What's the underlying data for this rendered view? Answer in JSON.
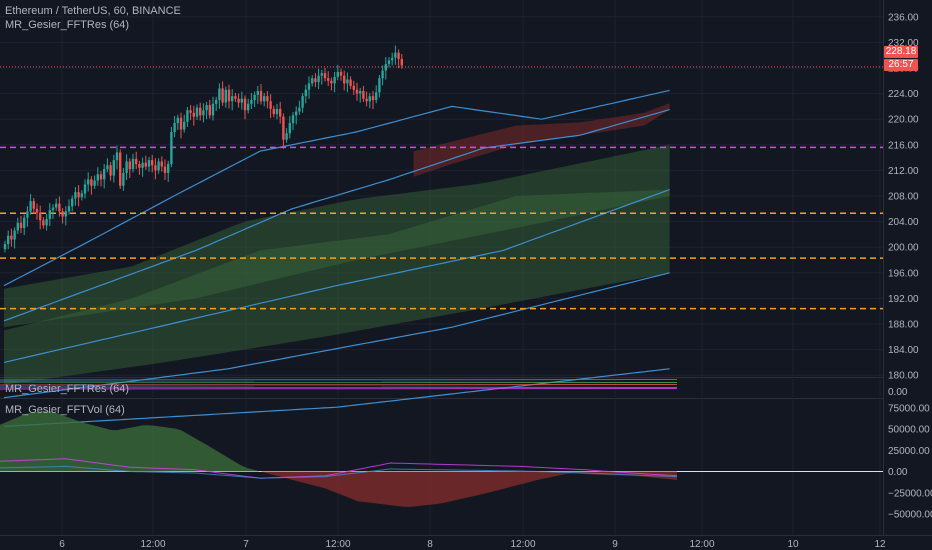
{
  "header": {
    "title": "Ethereum / TetherUS, 60, BINANCE",
    "study_main": "MR_Gesier_FFTRes (64)",
    "study_res": "MR_Gesier_FFTRes (64)",
    "study_vol": "MR_Gesier_FFTVol (64)"
  },
  "price_tags": {
    "last_price": "228.18",
    "countdown": "26:57"
  },
  "colors": {
    "background": "#131722",
    "grid": "#1e2230",
    "up": "#26a69a",
    "down": "#ef5350",
    "band_green": "#3a6b3a",
    "band_red": "#7a2a2a",
    "ma_blue": "#3d8fd1",
    "ma_green": "#4caf50",
    "level_orange": "#f7a21b",
    "level_magenta": "#e040fb",
    "text": "#b2b5be"
  },
  "chart_data": [
    {
      "type": "candlestick",
      "title": "Ethereum / TetherUS, 60, BINANCE",
      "ylim": [
        175,
        236
      ],
      "yticks": [
        180,
        184,
        188,
        192,
        196,
        200,
        204,
        208,
        212,
        216,
        220,
        224,
        228,
        232,
        236
      ],
      "xticks": [
        "6",
        "12:00",
        "7",
        "12:00",
        "8",
        "12:00",
        "9",
        "12:00",
        "10",
        "12"
      ],
      "last_price": 228.18,
      "horizontal_levels": [
        {
          "price": 228.18,
          "style": "dotted",
          "color": "#ef5350"
        },
        {
          "price": 215.6,
          "style": "dashed",
          "color": "#e040fb"
        },
        {
          "price": 205.3,
          "style": "dashed",
          "color": "#f7a21b"
        },
        {
          "price": 198.3,
          "style": "dashed",
          "color": "#f7a21b"
        },
        {
          "price": 190.4,
          "style": "dashed",
          "color": "#f7a21b"
        }
      ],
      "closes": [
        200.5,
        201.8,
        201.2,
        202.6,
        203.8,
        203.0,
        204.6,
        205.6,
        207.2,
        206.0,
        205.4,
        204.2,
        203.4,
        204.4,
        205.8,
        206.2,
        206.8,
        205.6,
        204.8,
        205.6,
        206.4,
        207.6,
        208.6,
        207.8,
        208.4,
        209.8,
        210.6,
        209.6,
        210.4,
        211.4,
        210.6,
        212.2,
        212.8,
        211.2,
        213.6,
        214.8,
        209.6,
        211.6,
        213.4,
        212.2,
        213.8,
        213.0,
        212.4,
        213.2,
        212.6,
        213.6,
        212.8,
        212.0,
        213.4,
        212.6,
        211.6,
        213.0,
        218.0,
        219.4,
        220.2,
        218.4,
        219.6,
        221.4,
        221.0,
        220.4,
        221.8,
        220.6,
        221.4,
        222.2,
        220.6,
        222.4,
        223.0,
        224.8,
        222.6,
        224.6,
        222.8,
        223.6,
        223.2,
        222.6,
        223.2,
        221.4,
        222.4,
        223.0,
        223.8,
        224.4,
        222.8,
        223.6,
        222.8,
        221.6,
        220.8,
        221.6,
        220.4,
        216.8,
        217.8,
        219.4,
        220.6,
        221.2,
        221.8,
        223.6,
        224.6,
        225.6,
        226.4,
        225.8,
        226.8,
        227.2,
        226.4,
        226.0,
        225.6,
        226.6,
        227.4,
        226.8,
        225.6,
        226.2,
        225.2,
        224.6,
        224.0,
        224.4,
        223.2,
        222.8,
        223.6,
        223.0,
        224.2,
        226.4,
        227.6,
        228.6,
        229.2,
        229.6,
        230.4,
        229.4,
        228.4
      ],
      "bands": [
        {
          "name": "band_outer",
          "upper": [
            [
              0,
              187.0
            ],
            [
              40,
              192.0
            ],
            [
              80,
              199.5
            ],
            [
              120,
              202.0
            ],
            [
              160,
              208.0
            ],
            [
              208,
              209.0
            ]
          ],
          "lower": [
            [
              0,
              178.5
            ],
            [
              50,
              182.0
            ],
            [
              100,
              186.0
            ],
            [
              150,
              190.5
            ],
            [
              208,
              196.0
            ]
          ],
          "color": "#3a6b3a"
        },
        {
          "name": "band_mid",
          "upper": [
            [
              0,
              193.5
            ],
            [
              40,
              197.0
            ],
            [
              75,
              204.0
            ],
            [
              110,
              207.5
            ],
            [
              150,
              210.0
            ],
            [
              208,
              216.0
            ]
          ],
          "lower": [
            [
              0,
              187.5
            ],
            [
              60,
              192.0
            ],
            [
              110,
              198.0
            ],
            [
              160,
              203.0
            ],
            [
              208,
              208.0
            ]
          ],
          "color": "#3a6b3a"
        }
      ],
      "ma_lines": [
        {
          "name": "ma_fast",
          "color": "#3d8fd1",
          "points": [
            [
              0,
              194.0
            ],
            [
              25,
              200.5
            ],
            [
              55,
              208.5
            ],
            [
              80,
              215.0
            ],
            [
              110,
              218.0
            ],
            [
              140,
              222.0
            ],
            [
              168,
              220.0
            ],
            [
              208,
              224.5
            ]
          ]
        },
        {
          "name": "ma_mid",
          "color": "#3d8fd1",
          "points": [
            [
              0,
              188.5
            ],
            [
              30,
              194.0
            ],
            [
              60,
              199.5
            ],
            [
              90,
              206.0
            ],
            [
              120,
              210.5
            ],
            [
              150,
              215.5
            ],
            [
              180,
              217.5
            ],
            [
              208,
              221.5
            ]
          ]
        },
        {
          "name": "ma_slow",
          "color": "#3d8fd1",
          "points": [
            [
              0,
              182.0
            ],
            [
              52,
              188.0
            ],
            [
              104,
              194.0
            ],
            [
              156,
              199.5
            ],
            [
              208,
              209.0
            ]
          ]
        },
        {
          "name": "ma_very_slow",
          "color": "#3d8fd1",
          "points": [
            [
              0,
              176.5
            ],
            [
              70,
              181.0
            ],
            [
              140,
              187.5
            ],
            [
              208,
              196.0
            ]
          ]
        },
        {
          "name": "ma_bottom",
          "color": "#3d8fd1",
          "points": [
            [
              0,
              172.0
            ],
            [
              104,
              175.0
            ],
            [
              208,
              181.0
            ]
          ]
        }
      ]
    },
    {
      "type": "line",
      "title": "MR_Gesier_FFTRes (64)",
      "yticks": [
        0.0
      ],
      "series": []
    },
    {
      "type": "area",
      "title": "MR_Gesier_FFTVol (64)",
      "ylim": [
        -60000,
        80000
      ],
      "yticks": [
        75000,
        50000,
        25000,
        0,
        -25000,
        -50000
      ],
      "ytick_labels": [
        "75000.00",
        "50000.00",
        "25000.00",
        "0.00",
        "−25000.00",
        "−50000.00"
      ],
      "area_values": [
        [
          0,
          55000
        ],
        [
          8,
          68000
        ],
        [
          15,
          72000
        ],
        [
          25,
          58000
        ],
        [
          35,
          48000
        ],
        [
          45,
          55000
        ],
        [
          55,
          50000
        ],
        [
          65,
          28000
        ],
        [
          75,
          5000
        ],
        [
          85,
          -5000
        ],
        [
          100,
          -20000
        ],
        [
          110,
          -35000
        ],
        [
          125,
          -42000
        ],
        [
          135,
          -38000
        ],
        [
          150,
          -25000
        ],
        [
          165,
          -10000
        ],
        [
          175,
          -2000
        ],
        [
          185,
          -4000
        ],
        [
          195,
          -5000
        ],
        [
          208,
          -10000
        ]
      ],
      "line_values": [
        [
          0,
          12000
        ],
        [
          20,
          15000
        ],
        [
          40,
          5000
        ],
        [
          60,
          2000
        ],
        [
          80,
          -8000
        ],
        [
          100,
          -5000
        ],
        [
          120,
          10000
        ],
        [
          140,
          8000
        ],
        [
          160,
          6000
        ],
        [
          180,
          2000
        ],
        [
          195,
          -2000
        ],
        [
          208,
          -5000
        ]
      ]
    }
  ]
}
